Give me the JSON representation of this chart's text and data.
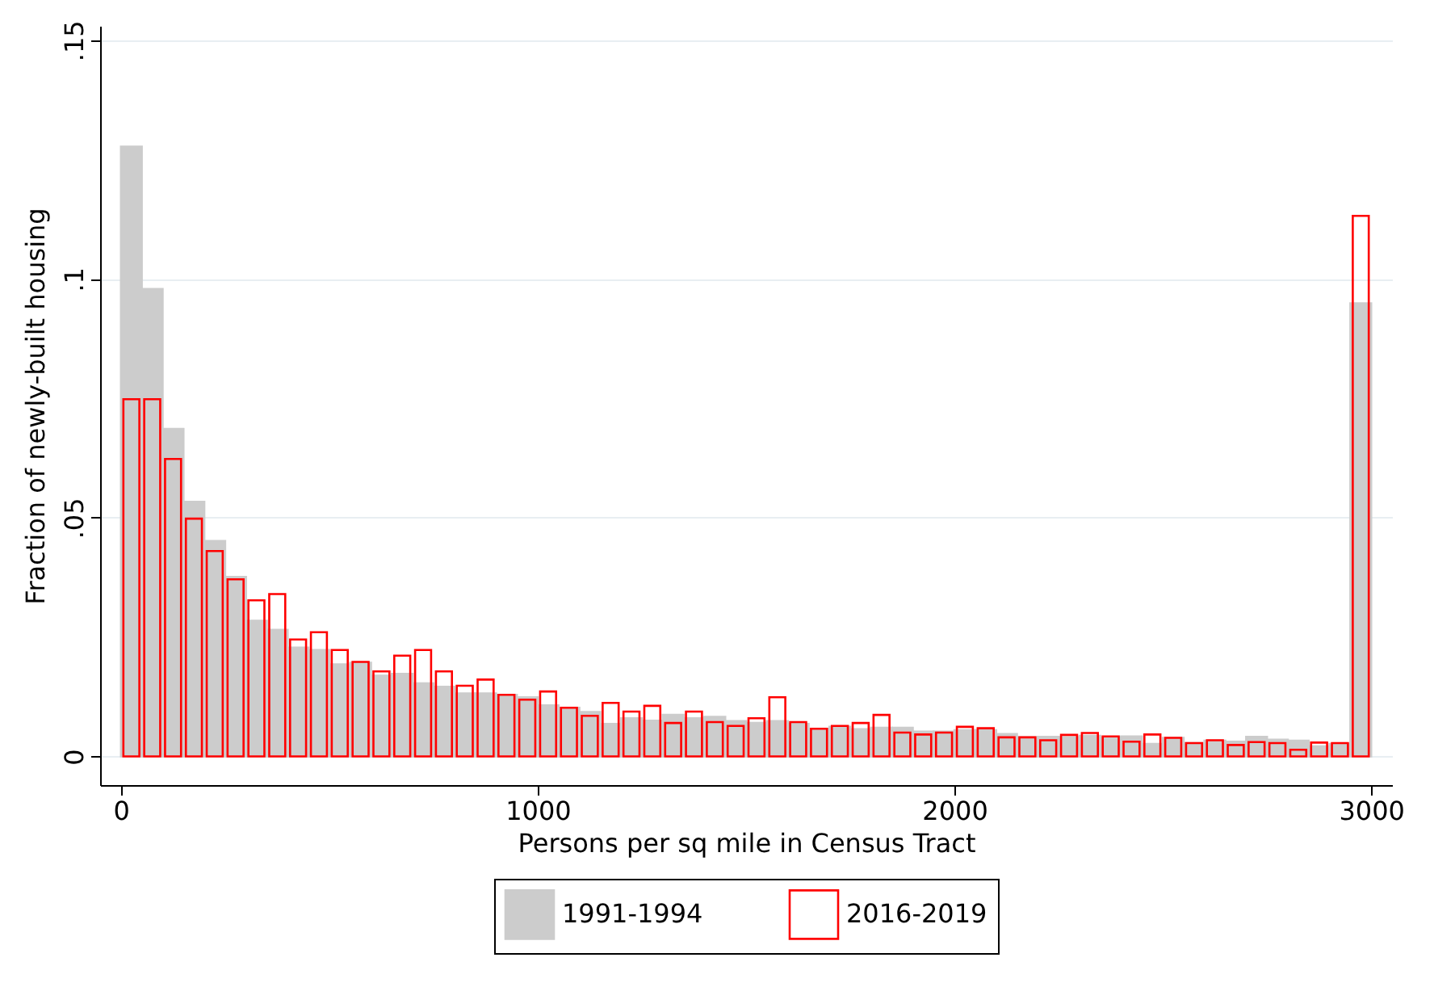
{
  "chart_data": {
    "type": "histogram",
    "xlabel": "Persons per sq mile in Census Tract",
    "ylabel": "Fraction of newly-built housing",
    "bins": [
      0,
      50,
      100,
      150,
      200,
      250,
      300,
      350,
      400,
      450,
      500,
      550,
      600,
      650,
      700,
      750,
      800,
      850,
      900,
      950,
      1000,
      1050,
      1100,
      1150,
      1200,
      1250,
      1300,
      1350,
      1400,
      1450,
      1500,
      1550,
      1600,
      1650,
      1700,
      1750,
      1800,
      1850,
      1900,
      1950,
      2000,
      2050,
      2100,
      2150,
      2200,
      2250,
      2300,
      2350,
      2400,
      2450,
      2500,
      2550,
      2600,
      2650,
      2700,
      2750,
      2800,
      2850,
      2900,
      2950,
      3000
    ],
    "series": [
      {
        "name": "1991-1994",
        "color": "#cccccc",
        "values": [
          0.1277,
          0.0979,
          0.0686,
          0.0533,
          0.0451,
          0.0376,
          0.0284,
          0.0265,
          0.0228,
          0.0223,
          0.0193,
          0.0196,
          0.0169,
          0.0173,
          0.0153,
          0.0146,
          0.0132,
          0.0132,
          0.0129,
          0.0124,
          0.0107,
          0.0102,
          0.0093,
          0.0068,
          0.008,
          0.0075,
          0.0087,
          0.008,
          0.0083,
          0.0074,
          0.007,
          0.0074,
          0.0068,
          0.0058,
          0.0062,
          0.0057,
          0.006,
          0.006,
          0.0052,
          0.0052,
          0.0055,
          0.0055,
          0.0047,
          0.004,
          0.0041,
          0.004,
          0.0043,
          0.004,
          0.0042,
          0.0026,
          0.0039,
          0.0028,
          0.0033,
          0.0031,
          0.0041,
          0.0035,
          0.0033,
          0.0021,
          0.0026,
          0.0949
        ]
      },
      {
        "name": "2016-2019",
        "color": "#ff0000",
        "values": [
          0.0748,
          0.0748,
          0.0623,
          0.0498,
          0.043,
          0.0371,
          0.0327,
          0.034,
          0.0245,
          0.026,
          0.0223,
          0.0198,
          0.0178,
          0.0211,
          0.0223,
          0.0178,
          0.0148,
          0.0161,
          0.0129,
          0.0119,
          0.0136,
          0.0102,
          0.0085,
          0.0112,
          0.0094,
          0.0106,
          0.007,
          0.0094,
          0.0072,
          0.0064,
          0.008,
          0.0124,
          0.0072,
          0.0058,
          0.0064,
          0.007,
          0.0087,
          0.005,
          0.0046,
          0.005,
          0.0062,
          0.0059,
          0.004,
          0.004,
          0.0034,
          0.0045,
          0.0049,
          0.0042,
          0.0031,
          0.0046,
          0.0039,
          0.0028,
          0.0034,
          0.0024,
          0.003,
          0.0028,
          0.0014,
          0.0029,
          0.0028,
          0.1132
        ]
      }
    ],
    "xlim": [
      -50,
      3050
    ],
    "xticks": [
      0,
      1000,
      2000,
      3000
    ],
    "ylim": [
      -0.006,
      0.153
    ],
    "yticks": [
      0,
      {
        "value": 0.05,
        "label": ".05"
      },
      {
        "value": 0.1,
        "label": ".1"
      },
      {
        "value": 0.15,
        "label": ".15"
      }
    ],
    "grid": "y",
    "legend": "bottom"
  }
}
